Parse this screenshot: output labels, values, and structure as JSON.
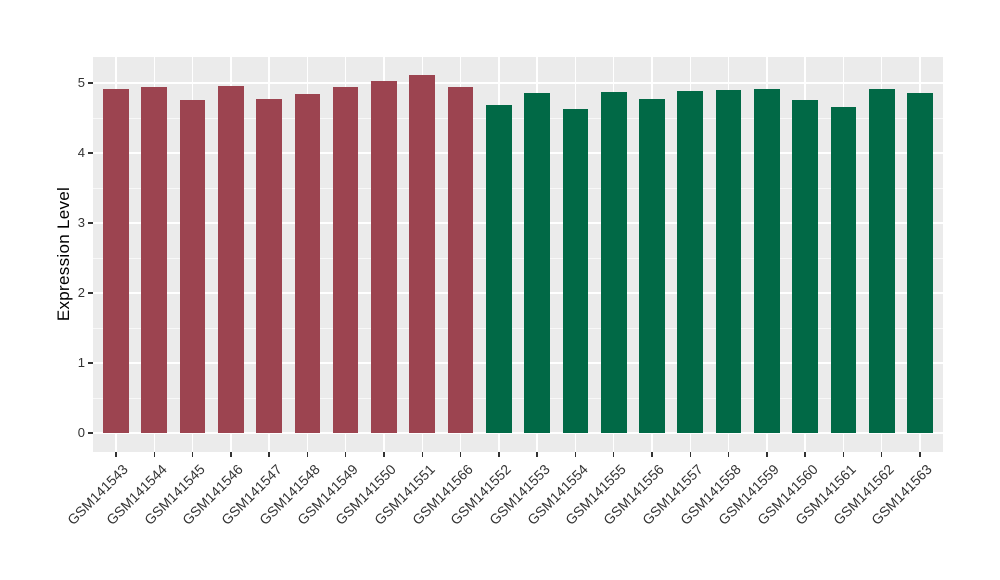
{
  "chart_data": {
    "type": "bar",
    "title": "",
    "xlabel": "",
    "ylabel": "Expression Level",
    "ylim": [
      -0.27,
      5.37
    ],
    "yticks": [
      0,
      1,
      2,
      3,
      4,
      5
    ],
    "yticks_minor": [
      0.5,
      1.5,
      2.5,
      3.5,
      4.5
    ],
    "grid": "on",
    "legend_position": "none",
    "categories": [
      "GSM141543",
      "GSM141544",
      "GSM141545",
      "GSM141546",
      "GSM141547",
      "GSM141548",
      "GSM141549",
      "GSM141550",
      "GSM141551",
      "GSM141566",
      "GSM141552",
      "GSM141553",
      "GSM141554",
      "GSM141555",
      "GSM141556",
      "GSM141557",
      "GSM141558",
      "GSM141559",
      "GSM141560",
      "GSM141561",
      "GSM141562",
      "GSM141563"
    ],
    "values": [
      4.92,
      4.95,
      4.76,
      4.96,
      4.77,
      4.84,
      4.95,
      5.03,
      5.12,
      4.95,
      4.69,
      4.86,
      4.63,
      4.87,
      4.77,
      4.89,
      4.9,
      4.92,
      4.76,
      4.66,
      4.92,
      4.86
    ],
    "bar_groups": [
      1,
      1,
      1,
      1,
      1,
      1,
      1,
      1,
      1,
      1,
      2,
      2,
      2,
      2,
      2,
      2,
      2,
      2,
      2,
      2,
      2,
      2
    ],
    "group_colors": {
      "1": "#9C4450",
      "2": "#016946"
    }
  },
  "style": {
    "panel_background": "#EBEBEB",
    "grid_color": "#FFFFFF",
    "tick_color": "#333333",
    "axis_text_color": "#333333",
    "axis_title_color": "#000000"
  }
}
